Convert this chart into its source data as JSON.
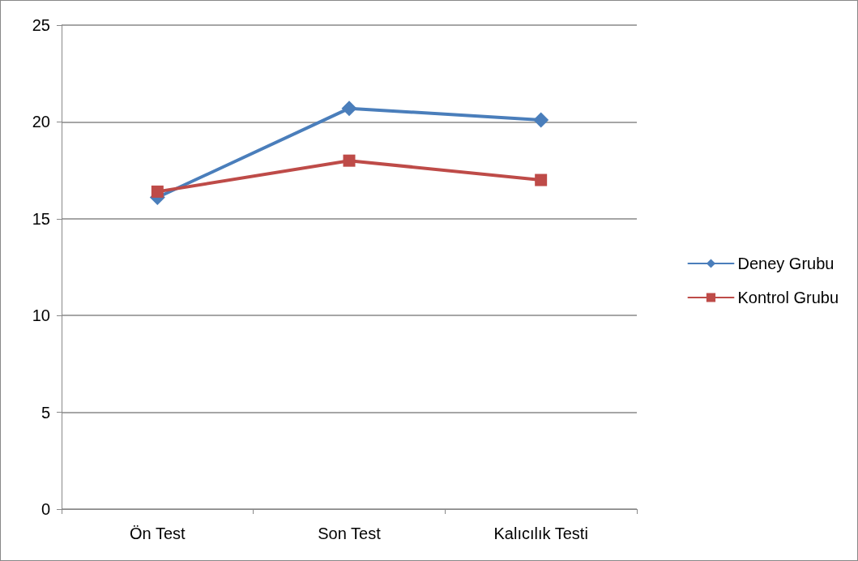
{
  "chart_data": {
    "type": "line",
    "categories": [
      "Ön Test",
      "Son Test",
      "Kalıcılık Testi"
    ],
    "series": [
      {
        "name": "Deney Grubu",
        "color": "#4a7ebb",
        "marker": "diamond",
        "values": [
          16.1,
          20.7,
          20.1
        ]
      },
      {
        "name": "Kontrol Grubu",
        "color": "#be4b48",
        "marker": "square",
        "values": [
          16.4,
          18.0,
          17.0
        ]
      }
    ],
    "ylim": [
      0,
      25
    ],
    "yticks": [
      0,
      5,
      10,
      15,
      20,
      25
    ],
    "grid": "y",
    "legend": "right",
    "line_style": "solid"
  }
}
